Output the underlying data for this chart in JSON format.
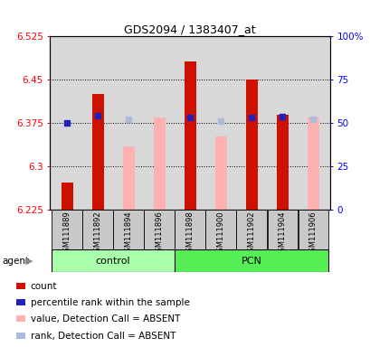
{
  "title": "GDS2094 / 1383407_at",
  "samples": [
    "GSM111889",
    "GSM111892",
    "GSM111894",
    "GSM111896",
    "GSM111898",
    "GSM111900",
    "GSM111902",
    "GSM111904",
    "GSM111906"
  ],
  "ylim_left": [
    6.225,
    6.525
  ],
  "ylim_right": [
    0,
    100
  ],
  "yticks_left": [
    6.225,
    6.3,
    6.375,
    6.45,
    6.525
  ],
  "ytick_labels_left": [
    "6.225",
    "6.3",
    "6.375",
    "6.45",
    "6.525"
  ],
  "yticks_right": [
    0,
    25,
    50,
    75,
    100
  ],
  "ytick_labels_right": [
    "0",
    "25",
    "50",
    "75",
    "100%"
  ],
  "hlines": [
    6.3,
    6.375,
    6.45
  ],
  "red_bar_values": [
    6.272,
    6.425,
    null,
    null,
    6.482,
    null,
    6.45,
    6.39,
    null
  ],
  "pink_bar_values": [
    null,
    null,
    6.335,
    6.385,
    null,
    6.352,
    null,
    null,
    6.385
  ],
  "blue_square_values": [
    6.375,
    6.388,
    null,
    null,
    6.385,
    null,
    6.385,
    6.387,
    null
  ],
  "lblue_square_values": [
    null,
    null,
    6.382,
    null,
    null,
    6.378,
    null,
    null,
    6.382
  ],
  "bar_bottom": 6.225,
  "bar_width": 0.38,
  "red_color": "#CC1100",
  "pink_color": "#FFB0B0",
  "blue_color": "#2222BB",
  "lblue_color": "#AABBDD",
  "ctrl_color": "#AAFFAA",
  "pcn_color": "#55EE55",
  "bg_color": "#D8D8D8",
  "legend_entries": [
    "count",
    "percentile rank within the sample",
    "value, Detection Call = ABSENT",
    "rank, Detection Call = ABSENT"
  ],
  "legend_colors": [
    "#CC1100",
    "#2222BB",
    "#FFB0B0",
    "#AABBDD"
  ],
  "left_axis_color": "red",
  "right_axis_color": "blue",
  "agent_label": "agent",
  "control_label": "control",
  "pcn_label": "PCN",
  "n_control": 4,
  "title_fontsize": 9
}
